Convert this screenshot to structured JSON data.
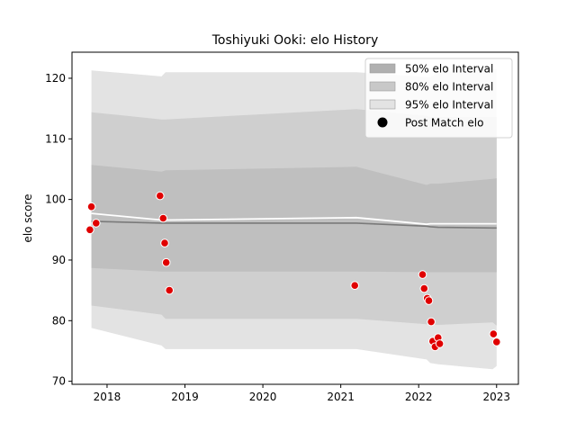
{
  "chart_data": {
    "type": "line",
    "title": "Toshiyuki Ooki: elo History",
    "xlabel": "",
    "ylabel": "elo score",
    "xlim": [
      2017.55,
      2023.28
    ],
    "ylim": [
      69.5,
      124.3
    ],
    "x_ticks": [
      2018,
      2019,
      2020,
      2021,
      2022,
      2023
    ],
    "x_tick_labels": [
      "2018",
      "2019",
      "2020",
      "2021",
      "2022",
      "2023"
    ],
    "y_ticks": [
      70,
      80,
      90,
      100,
      110,
      120
    ],
    "y_tick_labels": [
      "70",
      "80",
      "90",
      "100",
      "110",
      "120"
    ],
    "grid": false,
    "legend_position": "top-right",
    "legend": [
      {
        "label": "50% elo Interval",
        "kind": "band",
        "color": "#b0b0b0"
      },
      {
        "label": "80% elo Interval",
        "kind": "band",
        "color": "#c8c8c8"
      },
      {
        "label": "95% elo Interval",
        "kind": "band",
        "color": "#e3e3e3"
      },
      {
        "label": "Post Match elo",
        "kind": "marker",
        "color": "#000000"
      }
    ],
    "x": [
      2017.8,
      2018.7,
      2018.75,
      2021.2,
      2022.1,
      2022.15,
      2022.25,
      2022.95,
      2023.0
    ],
    "bands": [
      {
        "name": "95% elo Interval",
        "color": "#e3e3e3",
        "upper": [
          121.3,
          120.3,
          121.0,
          121.0,
          120.2,
          120.2,
          121.0,
          121.5,
          121.5
        ],
        "lower": [
          78.8,
          75.9,
          75.3,
          75.3,
          73.6,
          73.0,
          72.8,
          72.0,
          72.5
        ]
      },
      {
        "name": "80% elo Interval",
        "color": "#cfcfcf",
        "upper": [
          114.4,
          113.2,
          113.2,
          114.9,
          113.8,
          113.6,
          113.6,
          113.6,
          113.6
        ],
        "lower": [
          82.5,
          81.0,
          80.3,
          80.3,
          79.4,
          79.4,
          79.3,
          79.7,
          79.2
        ]
      },
      {
        "name": "50% elo Interval",
        "color": "#bfbfbf",
        "upper": [
          105.7,
          104.6,
          104.8,
          105.4,
          102.4,
          102.6,
          102.6,
          103.4,
          103.5
        ],
        "lower": [
          88.7,
          88.1,
          88.1,
          88.1,
          88.0,
          88.0,
          88.0,
          88.0,
          88.0
        ]
      }
    ],
    "lines": [
      {
        "name": "mean",
        "color": "#ffffff",
        "width": 1.8,
        "y": [
          97.7,
          96.6,
          96.6,
          97.0,
          95.9,
          96.0,
          96.0,
          96.0,
          96.0
        ]
      },
      {
        "name": "median",
        "color": "#7a7a7a",
        "width": 1.6,
        "y": [
          96.4,
          96.1,
          96.1,
          96.1,
          95.6,
          95.5,
          95.4,
          95.3,
          95.3
        ]
      }
    ],
    "points": [
      {
        "x": 2017.78,
        "y": 95.0
      },
      {
        "x": 2017.8,
        "y": 98.8
      },
      {
        "x": 2017.86,
        "y": 96.1
      },
      {
        "x": 2018.68,
        "y": 100.6
      },
      {
        "x": 2018.72,
        "y": 96.9
      },
      {
        "x": 2018.74,
        "y": 92.8
      },
      {
        "x": 2018.76,
        "y": 89.6
      },
      {
        "x": 2018.8,
        "y": 85.0
      },
      {
        "x": 2021.18,
        "y": 85.8
      },
      {
        "x": 2022.05,
        "y": 87.6
      },
      {
        "x": 2022.07,
        "y": 85.3
      },
      {
        "x": 2022.11,
        "y": 83.7
      },
      {
        "x": 2022.13,
        "y": 83.3
      },
      {
        "x": 2022.16,
        "y": 79.8
      },
      {
        "x": 2022.18,
        "y": 76.6
      },
      {
        "x": 2022.21,
        "y": 75.7
      },
      {
        "x": 2022.25,
        "y": 77.2
      },
      {
        "x": 2022.27,
        "y": 76.2
      },
      {
        "x": 2022.96,
        "y": 77.8
      },
      {
        "x": 2023.0,
        "y": 76.5
      }
    ],
    "point_color": "#e00000",
    "point_edge": "#ffffff"
  }
}
